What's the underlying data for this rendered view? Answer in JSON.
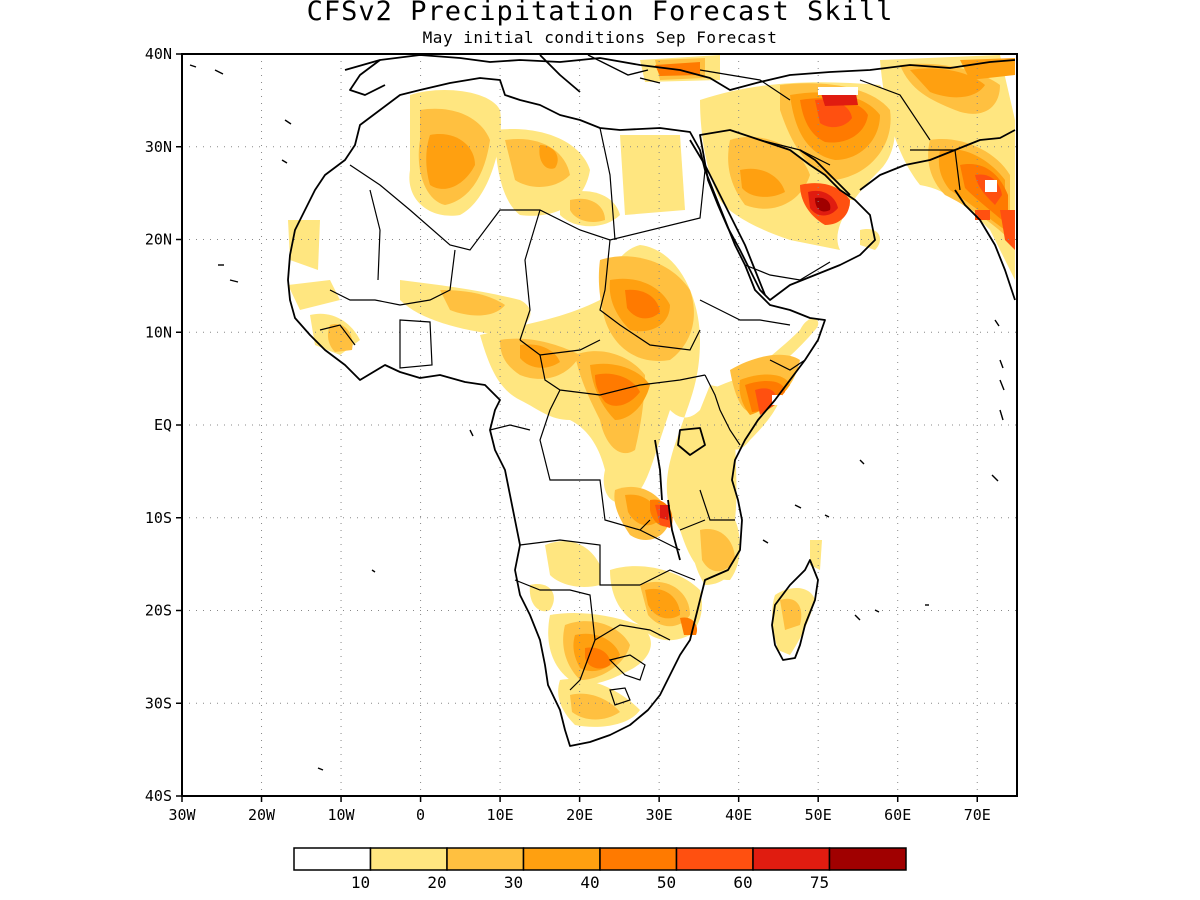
{
  "title": "CFSv2 Precipitation Forecast Skill",
  "subtitle": "May initial conditions  Sep Forecast",
  "map": {
    "x_ticks": [
      "30W",
      "20W",
      "10W",
      "0",
      "10E",
      "20E",
      "30E",
      "40E",
      "50E",
      "60E",
      "70E"
    ],
    "y_ticks": [
      "40N",
      "30N",
      "20N",
      "10N",
      "EQ",
      "10S",
      "20S",
      "30S",
      "40S"
    ],
    "lon_range": [
      -30,
      75
    ],
    "lat_range": [
      -40,
      40
    ],
    "grid": "dotted"
  },
  "colorbar": {
    "colors": [
      "#ffffff",
      "#ffe680",
      "#ffc040",
      "#ffa010",
      "#ff7a00",
      "#ff5010",
      "#e01c10",
      "#a00000"
    ],
    "labels": [
      "10",
      "20",
      "30",
      "40",
      "50",
      "60",
      "75"
    ]
  }
}
